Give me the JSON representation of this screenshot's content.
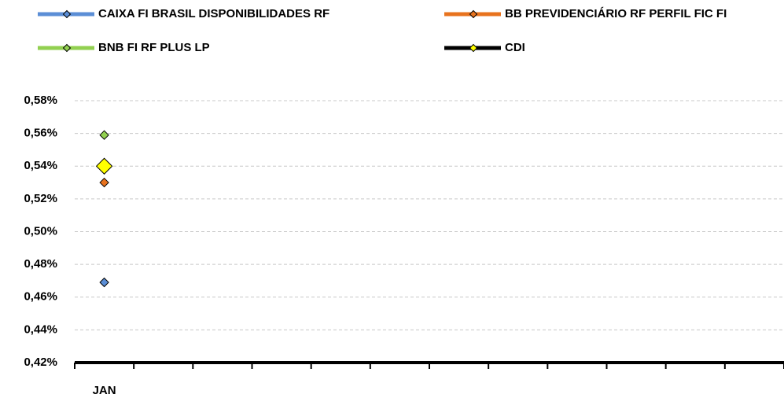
{
  "chart_data": {
    "type": "line",
    "categories": [
      "JAN",
      null,
      null,
      null,
      null,
      null,
      null,
      null,
      null,
      null,
      null,
      null
    ],
    "series": [
      {
        "name": "CAIXA FI BRASIL DISPONIBILIDADES RF",
        "color": "#5b8ed6",
        "marker_color": "#5b8ed6",
        "values": [
          0.469,
          null,
          null,
          null,
          null,
          null,
          null,
          null,
          null,
          null,
          null,
          null
        ]
      },
      {
        "name": "BB PREVIDENCIÁRIO RF PERFIL FIC FI",
        "color": "#e8731e",
        "marker_color": "#e8731e",
        "values": [
          0.53,
          null,
          null,
          null,
          null,
          null,
          null,
          null,
          null,
          null,
          null,
          null
        ]
      },
      {
        "name": "BNB FI RF PLUS LP",
        "color": "#92d050",
        "marker_color": "#92d050",
        "values": [
          0.559,
          null,
          null,
          null,
          null,
          null,
          null,
          null,
          null,
          null,
          null,
          null
        ]
      },
      {
        "name": "CDI",
        "color": "#000000",
        "marker_color": "#ffff00",
        "values": [
          0.54,
          null,
          null,
          null,
          null,
          null,
          null,
          null,
          null,
          null,
          null,
          null
        ]
      }
    ],
    "ylim": [
      0.42,
      0.58
    ],
    "yticks": [
      {
        "value": 0.42,
        "label": "0,42%"
      },
      {
        "value": 0.44,
        "label": "0,44%"
      },
      {
        "value": 0.46,
        "label": "0,46%"
      },
      {
        "value": 0.48,
        "label": "0,48%"
      },
      {
        "value": 0.5,
        "label": "0,50%"
      },
      {
        "value": 0.52,
        "label": "0,52%"
      },
      {
        "value": 0.54,
        "label": "0,54%"
      },
      {
        "value": 0.56,
        "label": "0,56%"
      },
      {
        "value": 0.58,
        "label": "0,58%"
      }
    ],
    "grid": true,
    "legend": "top"
  }
}
